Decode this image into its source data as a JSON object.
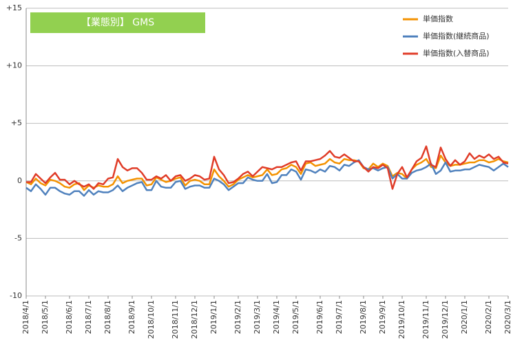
{
  "chart_data": {
    "type": "line",
    "title": "【業態別】 GMS",
    "categories": [
      "2018/4/1",
      null,
      null,
      null,
      "2018/5/1",
      null,
      null,
      null,
      null,
      "2018/6/1",
      null,
      null,
      null,
      "2018/7/1",
      null,
      null,
      null,
      "2018/8/1",
      null,
      null,
      null,
      null,
      "2018/9/1",
      null,
      null,
      null,
      "2018/10/1",
      null,
      null,
      null,
      null,
      "2018/11/1",
      null,
      null,
      null,
      "2018/12/1",
      null,
      null,
      null,
      "2019/1/1",
      null,
      null,
      null,
      null,
      "2019/2/1",
      null,
      null,
      null,
      "2019/3/1",
      null,
      null,
      null,
      "2019/4/1",
      null,
      null,
      null,
      "2019/5/1",
      null,
      null,
      null,
      null,
      "2019/6/1",
      null,
      null,
      null,
      "2019/7/1",
      null,
      null,
      null,
      null,
      "2019/8/1",
      null,
      null,
      null,
      "2019/9/1",
      null,
      null,
      null,
      "2019/10/1",
      null,
      null,
      null,
      null,
      "2019/11/1",
      null,
      null,
      null,
      "2019/12/1",
      null,
      null,
      null,
      "2020/1/1",
      null,
      null,
      null,
      null,
      "2020/2/1",
      null,
      null,
      null,
      "2020/3/1"
    ],
    "series": [
      {
        "name": "単価指数",
        "color": "#f39200",
        "values": [
          -0.1,
          -0.3,
          0.2,
          -0.2,
          -0.4,
          0.1,
          0.0,
          -0.2,
          -0.5,
          -0.6,
          -0.3,
          -0.2,
          -0.8,
          -0.4,
          -0.6,
          -0.4,
          -0.5,
          -0.5,
          -0.3,
          0.4,
          -0.2,
          0.0,
          0.1,
          0.2,
          0.2,
          -0.4,
          -0.3,
          0.3,
          0.1,
          -0.1,
          0.0,
          0.2,
          0.3,
          -0.4,
          0.0,
          0.1,
          0.0,
          -0.3,
          -0.3,
          1.0,
          0.4,
          0.0,
          -0.5,
          -0.3,
          0.1,
          0.3,
          0.5,
          0.3,
          0.4,
          0.5,
          1.0,
          0.5,
          0.6,
          1.0,
          1.1,
          1.4,
          1.2,
          0.6,
          1.5,
          1.6,
          1.3,
          1.4,
          1.5,
          1.9,
          1.6,
          1.5,
          1.9,
          1.8,
          1.8,
          1.7,
          1.1,
          1.0,
          1.5,
          1.2,
          1.5,
          1.3,
          0.4,
          0.7,
          0.6,
          0.2,
          1.0,
          1.4,
          1.6,
          1.9,
          1.2,
          1.1,
          2.2,
          1.6,
          1.3,
          1.4,
          1.4,
          1.5,
          1.6,
          1.6,
          1.8,
          1.8,
          1.6,
          1.7,
          1.9,
          1.7,
          1.6
        ]
      },
      {
        "name": "単価指数(継続商品)",
        "color": "#4f81bd",
        "values": [
          -0.6,
          -0.9,
          -0.3,
          -0.7,
          -1.2,
          -0.6,
          -0.6,
          -0.9,
          -1.1,
          -1.2,
          -0.9,
          -0.9,
          -1.3,
          -0.8,
          -1.2,
          -0.9,
          -1.0,
          -1.0,
          -0.8,
          -0.4,
          -0.9,
          -0.6,
          -0.4,
          -0.2,
          -0.1,
          -0.8,
          -0.8,
          0.0,
          -0.5,
          -0.6,
          -0.6,
          -0.1,
          0.0,
          -0.7,
          -0.5,
          -0.4,
          -0.4,
          -0.6,
          -0.6,
          0.2,
          0.0,
          -0.3,
          -0.8,
          -0.5,
          -0.2,
          -0.2,
          0.3,
          0.1,
          0.0,
          0.0,
          0.6,
          -0.2,
          -0.1,
          0.5,
          0.5,
          1.0,
          0.8,
          0.1,
          1.0,
          0.9,
          0.7,
          1.0,
          0.8,
          1.3,
          1.2,
          0.9,
          1.4,
          1.3,
          1.6,
          1.8,
          1.2,
          1.0,
          1.1,
          0.9,
          1.1,
          1.2,
          0.2,
          0.6,
          0.2,
          0.2,
          0.7,
          0.9,
          1.0,
          1.2,
          1.5,
          0.6,
          0.9,
          1.6,
          0.8,
          0.9,
          0.9,
          1.0,
          1.0,
          1.2,
          1.4,
          1.3,
          1.2,
          0.9,
          1.2,
          1.5,
          1.2
        ]
      },
      {
        "name": "単価指数(入替商品)",
        "color": "#e03c28",
        "values": [
          -0.1,
          -0.1,
          0.6,
          0.2,
          -0.2,
          0.3,
          0.7,
          0.1,
          0.1,
          -0.3,
          0.0,
          -0.3,
          -0.5,
          -0.3,
          -0.7,
          -0.2,
          -0.3,
          0.2,
          0.3,
          1.9,
          1.2,
          0.9,
          1.1,
          1.1,
          0.7,
          0.1,
          0.1,
          0.4,
          0.2,
          0.5,
          0.0,
          0.4,
          0.5,
          0.0,
          0.2,
          0.5,
          0.4,
          0.1,
          0.2,
          2.1,
          1.0,
          0.5,
          -0.2,
          -0.1,
          0.2,
          0.6,
          0.8,
          0.4,
          0.8,
          1.2,
          1.1,
          1.0,
          1.2,
          1.2,
          1.4,
          1.6,
          1.7,
          0.9,
          1.7,
          1.7,
          1.8,
          1.9,
          2.2,
          2.6,
          2.1,
          2.0,
          2.3,
          2.0,
          1.7,
          1.7,
          1.2,
          0.8,
          1.2,
          1.1,
          1.4,
          1.1,
          -0.7,
          0.6,
          1.2,
          0.3,
          1.0,
          1.7,
          2.0,
          3.0,
          1.4,
          1.2,
          2.9,
          1.9,
          1.3,
          1.8,
          1.4,
          1.7,
          2.4,
          1.9,
          2.2,
          2.0,
          2.3,
          1.9,
          2.1,
          1.6,
          1.5
        ]
      }
    ],
    "ylim": [
      -10,
      15
    ],
    "yticks": [
      -10,
      -5,
      0,
      {
        "value": 5,
        "label": "+5"
      },
      {
        "value": 10,
        "label": "+10"
      },
      {
        "value": 15,
        "label": "+15"
      }
    ],
    "grid": true
  }
}
